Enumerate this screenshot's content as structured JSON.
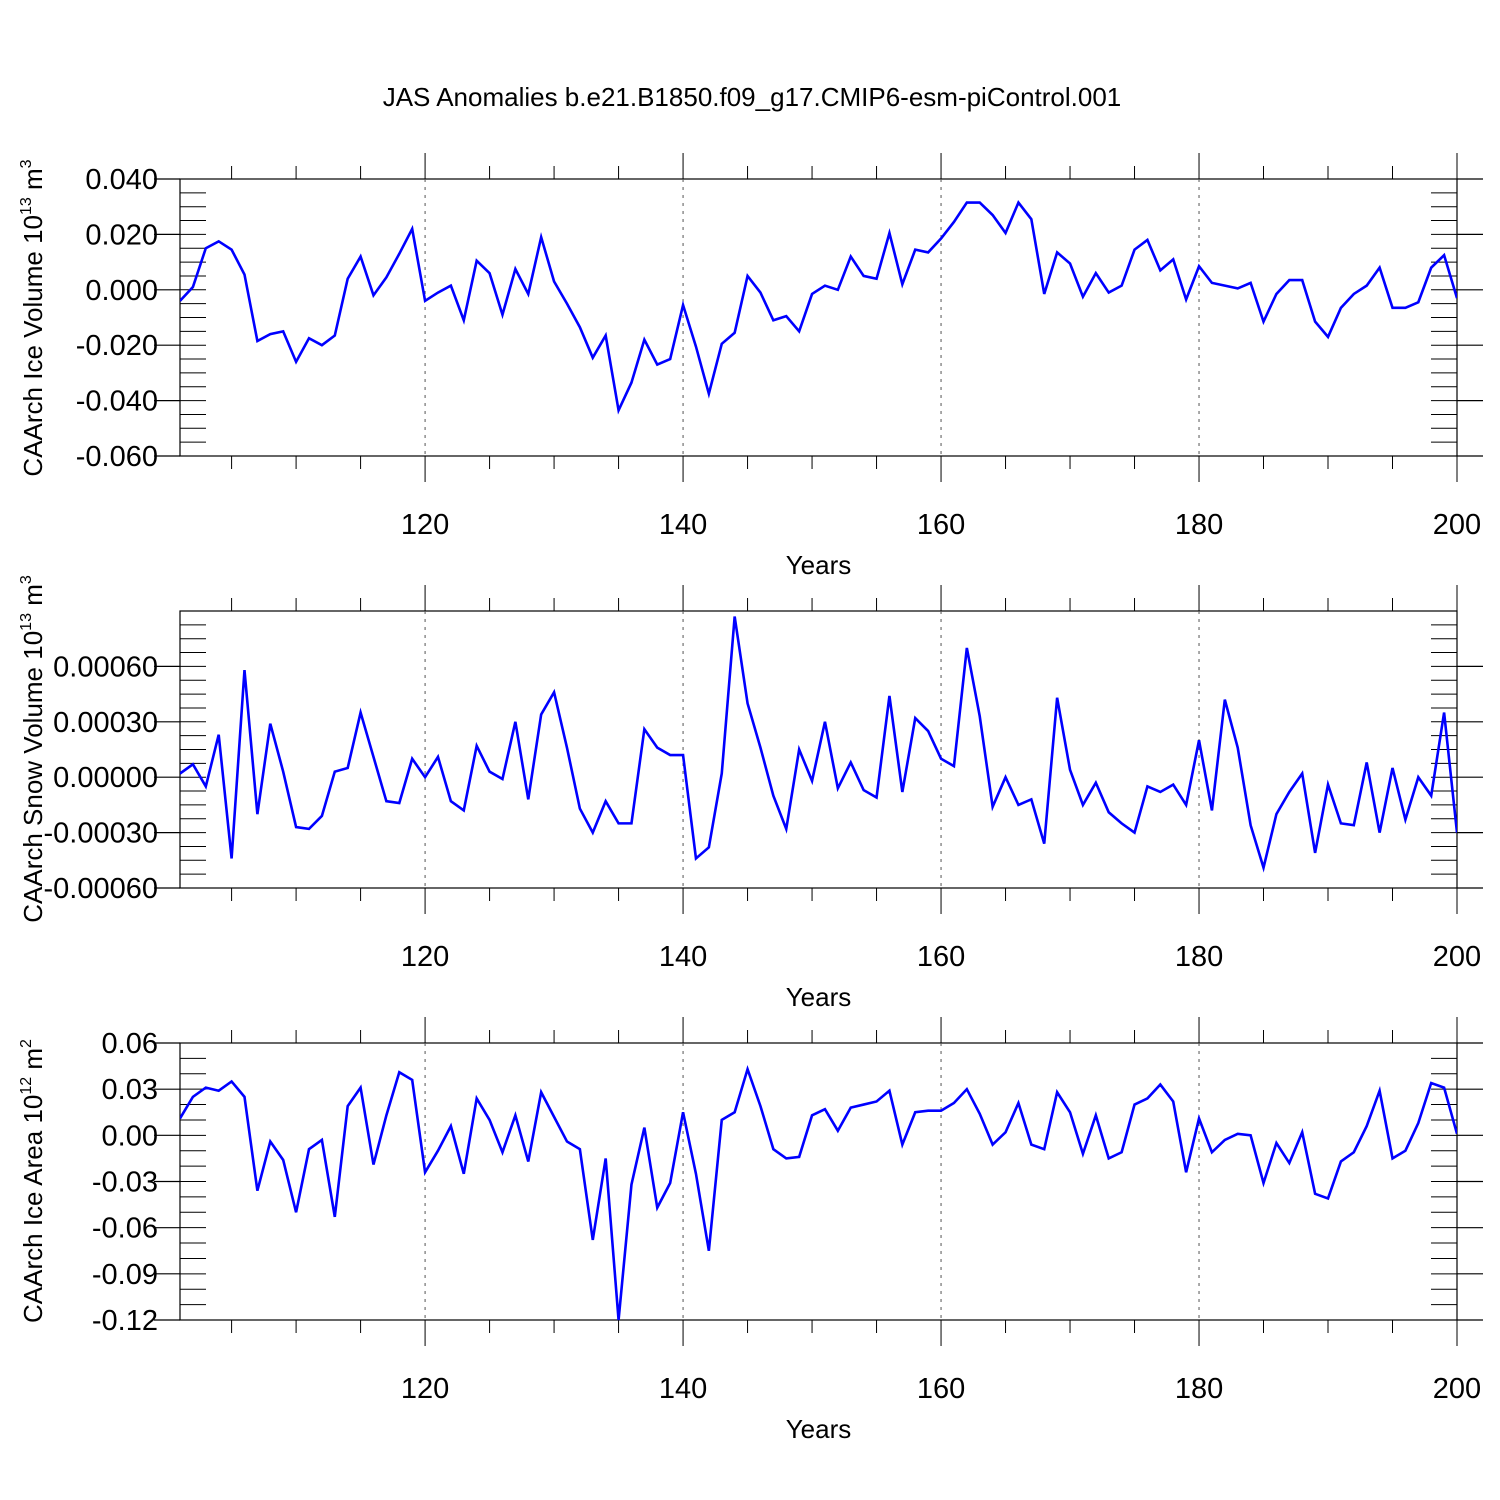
{
  "figure": {
    "title": "JAS Anomalies b.e21.B1850.f09_g17.CMIP6-esm-piControl.001",
    "line_color": "#0000ff"
  },
  "chart_data": [
    {
      "type": "line",
      "ylabel": "CAArch Ice Volume",
      "ylabel_unit_base": "10",
      "ylabel_unit_exp": "13",
      "ylabel_unit_rest": " m",
      "ylabel_unit_exp2": "3",
      "xlabel": "Years",
      "xlim": [
        101,
        200
      ],
      "ylim": [
        -0.06,
        0.04
      ],
      "yticks": [
        -0.06,
        -0.04,
        -0.02,
        0.0,
        0.02,
        0.04
      ],
      "ytick_labels": [
        "-0.060",
        "-0.040",
        "-0.020",
        "0.000",
        "0.020",
        "0.040"
      ],
      "yminor_step": 0.005,
      "xticks": [
        120,
        140,
        160,
        180,
        200
      ],
      "xtick_labels": [
        "120",
        "140",
        "160",
        "180",
        "200"
      ],
      "grid": "vertical dashed at major x ticks",
      "series": [
        {
          "name": "CAArch Ice Volume",
          "values": [
            -0.004,
            0.001,
            0.015,
            0.0175,
            0.0145,
            0.0055,
            -0.0185,
            -0.016,
            -0.015,
            -0.026,
            -0.0175,
            -0.02,
            -0.0165,
            0.004,
            0.012,
            -0.002,
            0.0045,
            0.013,
            0.022,
            -0.004,
            -0.001,
            0.0015,
            -0.011,
            0.0105,
            0.006,
            -0.009,
            0.0075,
            -0.0015,
            0.019,
            0.003,
            -0.005,
            -0.0135,
            -0.0245,
            -0.0165,
            -0.0435,
            -0.0335,
            -0.018,
            -0.027,
            -0.025,
            -0.0055,
            -0.0205,
            -0.0375,
            -0.0195,
            -0.0155,
            0.005,
            -0.001,
            -0.011,
            -0.0095,
            -0.015,
            -0.0015,
            0.0015,
            0.0,
            0.012,
            0.005,
            0.004,
            0.0205,
            0.002,
            0.0145,
            0.0135,
            0.0185,
            0.0245,
            0.0315,
            0.0315,
            0.027,
            0.0205,
            0.0315,
            0.0255,
            -0.0015,
            0.0135,
            0.0095,
            -0.0025,
            0.006,
            -0.001,
            0.0015,
            0.0145,
            0.018,
            0.007,
            0.011,
            -0.0035,
            0.0085,
            0.0025,
            0.0015,
            0.0005,
            0.0025,
            -0.0115,
            -0.0015,
            0.0035,
            0.0035,
            -0.0115,
            -0.017,
            -0.0065,
            -0.0015,
            0.0015,
            0.008,
            -0.0065,
            -0.0065,
            -0.0045,
            0.008,
            0.0125,
            -0.003
          ]
        }
      ]
    },
    {
      "type": "line",
      "ylabel": "CAArch Snow Volume",
      "ylabel_unit_base": "10",
      "ylabel_unit_exp": "13",
      "ylabel_unit_rest": " m",
      "ylabel_unit_exp2": "3",
      "xlabel": "Years",
      "xlim": [
        101,
        200
      ],
      "ylim": [
        -0.0006,
        0.0009
      ],
      "yticks": [
        -0.0006,
        -0.0003,
        0.0,
        0.0003,
        0.0006
      ],
      "ytick_labels": [
        "-0.00060",
        "-0.00030",
        "0.00000",
        "0.00030",
        "0.00060"
      ],
      "yminor_step": 7.5e-05,
      "xticks": [
        120,
        140,
        160,
        180,
        200
      ],
      "xtick_labels": [
        "120",
        "140",
        "160",
        "180",
        "200"
      ],
      "grid": "vertical dashed at major x ticks",
      "series": [
        {
          "name": "CAArch Snow Volume",
          "values": [
            2e-05,
            7e-05,
            -5e-05,
            0.00023,
            -0.00044,
            0.00058,
            -0.0002,
            0.00029,
            3e-05,
            -0.00027,
            -0.00028,
            -0.00021,
            3e-05,
            5e-05,
            0.00035,
            0.00011,
            -0.00013,
            -0.00014,
            0.0001,
            0.0,
            0.00011,
            -0.00013,
            -0.00018,
            0.00017,
            3e-05,
            -1e-05,
            0.0003,
            -0.00012,
            0.00034,
            0.00046,
            0.00016,
            -0.00017,
            -0.0003,
            -0.00013,
            -0.00025,
            -0.00025,
            0.00026,
            0.00016,
            0.00012,
            0.00012,
            -0.00044,
            -0.00038,
            2e-05,
            0.00087,
            0.0004,
            0.00016,
            -0.0001,
            -0.00028,
            0.00015,
            -2e-05,
            0.0003,
            -6e-05,
            8e-05,
            -7e-05,
            -0.00011,
            0.00044,
            -8e-05,
            0.00032,
            0.00025,
            0.0001,
            6e-05,
            0.0007,
            0.00033,
            -0.00016,
            0.0,
            -0.00015,
            -0.00012,
            -0.00036,
            0.00043,
            4e-05,
            -0.00015,
            -3e-05,
            -0.00019,
            -0.00025,
            -0.0003,
            -5e-05,
            -8e-05,
            -4e-05,
            -0.00015,
            0.0002,
            -0.00018,
            0.00042,
            0.00016,
            -0.00026,
            -0.00049,
            -0.0002,
            -8e-05,
            2e-05,
            -0.00041,
            -4e-05,
            -0.00025,
            -0.00026,
            8e-05,
            -0.0003,
            5e-05,
            -0.00023,
            0.0,
            -0.0001,
            0.00035,
            -0.0003
          ]
        }
      ]
    },
    {
      "type": "line",
      "ylabel": "CAArch Ice Area",
      "ylabel_unit_base": "10",
      "ylabel_unit_exp": "12",
      "ylabel_unit_rest": " m",
      "ylabel_unit_exp2": "2",
      "xlabel": "Years",
      "xlim": [
        101,
        200
      ],
      "ylim": [
        -0.12,
        0.06
      ],
      "yticks": [
        -0.12,
        -0.09,
        -0.06,
        -0.03,
        0.0,
        0.03,
        0.06
      ],
      "ytick_labels": [
        "-0.12",
        "-0.09",
        "-0.06",
        "-0.03",
        "0.00",
        "0.03",
        "0.06"
      ],
      "yminor_step": 0.01,
      "xticks": [
        120,
        140,
        160,
        180,
        200
      ],
      "xtick_labels": [
        "120",
        "140",
        "160",
        "180",
        "200"
      ],
      "grid": "vertical dashed at major x ticks",
      "series": [
        {
          "name": "CAArch Ice Area",
          "values": [
            0.011,
            0.025,
            0.031,
            0.029,
            0.035,
            0.025,
            -0.036,
            -0.004,
            -0.016,
            -0.05,
            -0.009,
            -0.003,
            -0.053,
            0.019,
            0.031,
            -0.019,
            0.013,
            0.041,
            0.036,
            -0.024,
            -0.01,
            0.006,
            -0.025,
            0.024,
            0.01,
            -0.011,
            0.013,
            -0.017,
            0.028,
            0.012,
            -0.004,
            -0.009,
            -0.068,
            -0.015,
            -0.12,
            -0.032,
            0.005,
            -0.047,
            -0.031,
            0.015,
            -0.025,
            -0.075,
            0.01,
            0.015,
            0.043,
            0.019,
            -0.009,
            -0.015,
            -0.014,
            0.013,
            0.017,
            0.003,
            0.018,
            0.02,
            0.022,
            0.029,
            -0.006,
            0.015,
            0.016,
            0.016,
            0.021,
            0.03,
            0.014,
            -0.006,
            0.002,
            0.021,
            -0.006,
            -0.009,
            0.028,
            0.015,
            -0.012,
            0.013,
            -0.015,
            -0.011,
            0.02,
            0.024,
            0.033,
            0.022,
            -0.024,
            0.011,
            -0.011,
            -0.003,
            0.001,
            0.0,
            -0.031,
            -0.005,
            -0.018,
            0.002,
            -0.038,
            -0.041,
            -0.017,
            -0.011,
            0.006,
            0.029,
            -0.015,
            -0.01,
            0.008,
            0.034,
            0.031,
            0.001
          ]
        }
      ]
    }
  ]
}
